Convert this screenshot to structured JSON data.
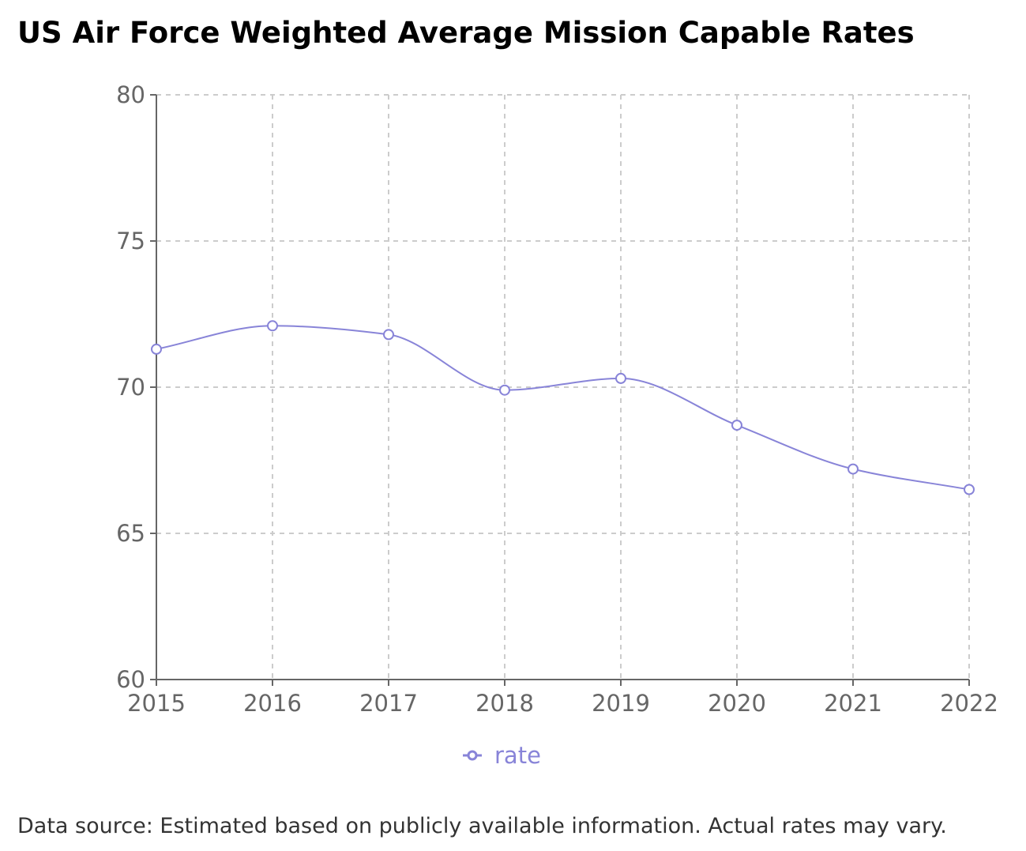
{
  "footnote": "Data source: Estimated based on publicly available information. Actual rates may vary.",
  "chart_data": {
    "type": "line",
    "title": "US Air Force Weighted Average Mission Capable Rates",
    "xlabel": "",
    "ylabel": "",
    "x": [
      "2015",
      "2016",
      "2017",
      "2018",
      "2019",
      "2020",
      "2021",
      "2022"
    ],
    "series": [
      {
        "name": "rate",
        "values": [
          71.3,
          72.1,
          71.8,
          69.9,
          70.3,
          68.7,
          67.2,
          66.5
        ],
        "color": "#8884d8"
      }
    ],
    "ylim": [
      60,
      80
    ],
    "yticks": [
      60,
      65,
      70,
      75,
      80
    ],
    "grid": true,
    "grid_style": "dashed",
    "curve": "smooth",
    "legend": "bottom-center"
  }
}
